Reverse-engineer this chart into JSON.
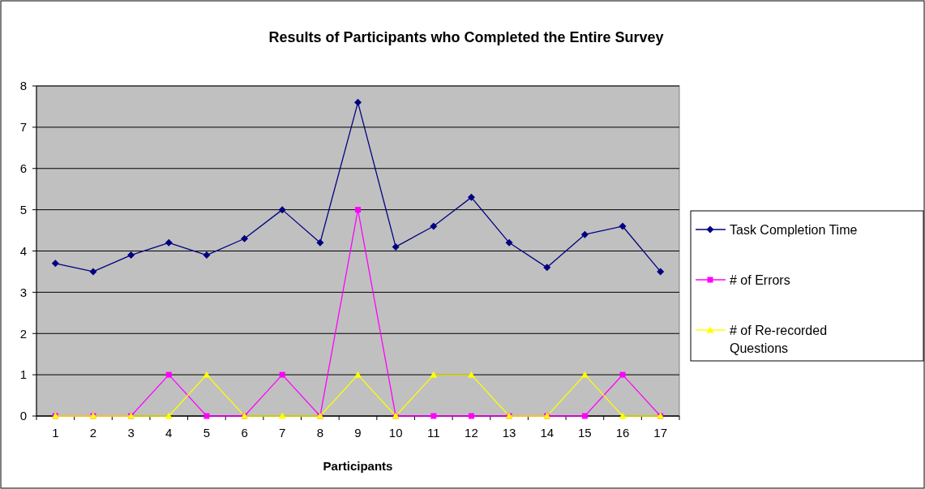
{
  "chart_data": {
    "type": "line",
    "title": "Results of Participants who Completed the Entire Survey",
    "xlabel": "Participants",
    "categories": [
      "1",
      "2",
      "3",
      "4",
      "5",
      "6",
      "7",
      "8",
      "9",
      "10",
      "11",
      "12",
      "13",
      "14",
      "15",
      "16",
      "17"
    ],
    "series": [
      {
        "name": "Task Completion Time",
        "color": "#000080",
        "marker": "diamond",
        "values": [
          3.7,
          3.5,
          3.9,
          4.2,
          3.9,
          4.3,
          5.0,
          4.2,
          7.6,
          4.1,
          4.6,
          5.3,
          4.2,
          3.6,
          4.4,
          4.6,
          3.5
        ]
      },
      {
        "name": "# of Errors",
        "color": "#ff00ff",
        "marker": "square",
        "values": [
          0,
          0,
          0,
          1,
          0,
          0,
          1,
          0,
          5,
          0,
          0,
          0,
          0,
          0,
          0,
          1,
          0
        ]
      },
      {
        "name": "# of Re-recorded Questions",
        "color": "#ffff00",
        "marker": "triangle",
        "values": [
          0,
          0,
          0,
          0,
          1,
          0,
          0,
          0,
          1,
          0,
          1,
          1,
          0,
          0,
          1,
          0,
          0
        ]
      }
    ],
    "ylim": [
      0,
      8
    ],
    "yticks": [
      0,
      1,
      2,
      3,
      4,
      5,
      6,
      7,
      8
    ],
    "grid": "y",
    "legend": "right"
  }
}
